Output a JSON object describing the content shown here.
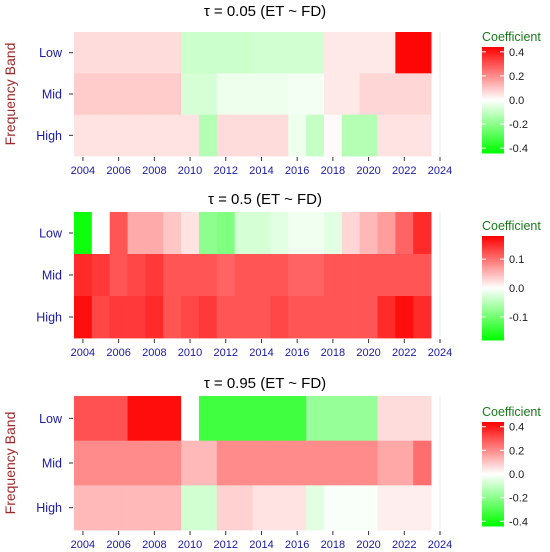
{
  "chart_data": [
    {
      "type": "heatmap",
      "title": "τ = 0.05  (ET ~ FD)",
      "ylabel": "Frequency Band",
      "xlabel": "",
      "rows": [
        "Low",
        "Mid",
        "High"
      ],
      "x": [
        2004,
        2005,
        2006,
        2007,
        2008,
        2009,
        2010,
        2011,
        2012,
        2013,
        2014,
        2015,
        2016,
        2017,
        2018,
        2019,
        2020,
        2021,
        2022,
        2023
      ],
      "x_ticks": [
        "2004",
        "2006",
        "2008",
        "2010",
        "2012",
        "2014",
        "2016",
        "2018",
        "2020",
        "2022",
        "2024"
      ],
      "xlim": [
        2003.5,
        2024
      ],
      "values": {
        "Low": [
          0.06,
          0.06,
          0.06,
          0.06,
          0.06,
          0.06,
          -0.09,
          -0.09,
          -0.09,
          -0.09,
          -0.08,
          -0.08,
          -0.08,
          -0.08,
          0.04,
          0.04,
          0.04,
          0.04,
          0.43,
          0.43
        ],
        "Mid": [
          0.09,
          0.09,
          0.09,
          0.09,
          0.09,
          0.09,
          -0.07,
          -0.07,
          -0.03,
          -0.03,
          -0.03,
          -0.03,
          -0.02,
          -0.02,
          0.04,
          0.04,
          0.07,
          0.07,
          0.07,
          0.07
        ],
        "High": [
          0.05,
          0.05,
          0.05,
          0.05,
          0.05,
          0.05,
          0.05,
          -0.13,
          0.06,
          0.06,
          0.06,
          0.06,
          -0.03,
          -0.1,
          0.01,
          -0.13,
          -0.13,
          0.05,
          0.05,
          0.05
        ]
      },
      "legend": {
        "title": "Coefficient",
        "ticks": [
          "0.4",
          "0.2",
          "0.0",
          "-0.2",
          "-0.4"
        ],
        "tick_values": [
          0.4,
          0.2,
          0,
          -0.2,
          -0.4
        ],
        "range": [
          -0.44,
          0.44
        ]
      }
    },
    {
      "type": "heatmap",
      "title": "τ = 0.5  (ET ~ FD)",
      "ylabel": "",
      "xlabel": "",
      "rows": [
        "Low",
        "Mid",
        "High"
      ],
      "x": [
        2004,
        2005,
        2006,
        2007,
        2008,
        2009,
        2010,
        2011,
        2012,
        2013,
        2014,
        2015,
        2016,
        2017,
        2018,
        2019,
        2020,
        2021,
        2022,
        2023
      ],
      "x_ticks": [
        "2004",
        "2006",
        "2008",
        "2010",
        "2012",
        "2014",
        "2016",
        "2018",
        "2020",
        "2022",
        "2024"
      ],
      "xlim": [
        2003.5,
        2024
      ],
      "values": {
        "Low": [
          -0.17,
          0.0,
          0.12,
          0.06,
          0.06,
          0.04,
          0.02,
          -0.08,
          -0.09,
          -0.03,
          -0.03,
          -0.02,
          -0.01,
          -0.01,
          -0.02,
          0.03,
          0.05,
          0.07,
          0.11,
          0.15
        ],
        "Mid": [
          0.15,
          0.14,
          0.12,
          0.13,
          0.14,
          0.12,
          0.12,
          0.12,
          0.11,
          0.12,
          0.12,
          0.12,
          0.11,
          0.11,
          0.12,
          0.12,
          0.12,
          0.12,
          0.12,
          0.12
        ],
        "High": [
          0.17,
          0.13,
          0.14,
          0.14,
          0.15,
          0.12,
          0.13,
          0.14,
          0.12,
          0.12,
          0.12,
          0.13,
          0.12,
          0.12,
          0.12,
          0.12,
          0.12,
          0.15,
          0.17,
          0.15
        ]
      },
      "legend": {
        "title": "Coefficient",
        "ticks": [
          "0.1",
          "0.0",
          "-0.1"
        ],
        "tick_values": [
          0.1,
          0,
          -0.1
        ],
        "range": [
          -0.18,
          0.18
        ]
      }
    },
    {
      "type": "heatmap",
      "title": "τ = 0.95  (ET ~ FD)",
      "ylabel": "Frequency Band",
      "xlabel": "",
      "rows": [
        "Low",
        "Mid",
        "High"
      ],
      "x": [
        2004,
        2005,
        2006,
        2007,
        2008,
        2009,
        2010,
        2011,
        2012,
        2013,
        2014,
        2015,
        2016,
        2017,
        2018,
        2019,
        2020,
        2021,
        2022,
        2023
      ],
      "x_ticks": [
        "2004",
        "2006",
        "2008",
        "2010",
        "2012",
        "2014",
        "2016",
        "2018",
        "2020",
        "2022",
        "2024"
      ],
      "xlim": [
        2003.5,
        2024
      ],
      "values": {
        "Low": [
          0.3,
          0.3,
          0.3,
          0.42,
          0.42,
          0.42,
          0.0,
          -0.33,
          -0.33,
          -0.33,
          -0.33,
          -0.33,
          -0.33,
          -0.18,
          -0.18,
          -0.18,
          -0.18,
          0.06,
          0.06,
          0.06
        ],
        "Mid": [
          0.2,
          0.2,
          0.2,
          0.2,
          0.2,
          0.2,
          0.12,
          0.12,
          0.2,
          0.2,
          0.2,
          0.2,
          0.2,
          0.2,
          0.2,
          0.2,
          0.2,
          0.15,
          0.15,
          0.25
        ],
        "High": [
          0.12,
          0.12,
          0.12,
          0.12,
          0.12,
          0.12,
          -0.08,
          -0.08,
          0.08,
          0.08,
          0.05,
          0.05,
          0.05,
          -0.05,
          -0.01,
          -0.01,
          -0.01,
          0.03,
          0.03,
          0.03
        ]
      },
      "legend": {
        "title": "Coefficient",
        "ticks": [
          "0.4",
          "0.2",
          "0.0",
          "-0.2",
          "-0.4"
        ],
        "tick_values": [
          0.4,
          0.2,
          0,
          -0.2,
          -0.4
        ],
        "range": [
          -0.44,
          0.44
        ]
      }
    }
  ],
  "colors": {
    "high": "#ff0000",
    "mid": "#ffffff",
    "low": "#00ff00",
    "tick_text": "#1a1aa6",
    "axis_label": "#a0282a",
    "legend_title": "#1a7a1a"
  }
}
